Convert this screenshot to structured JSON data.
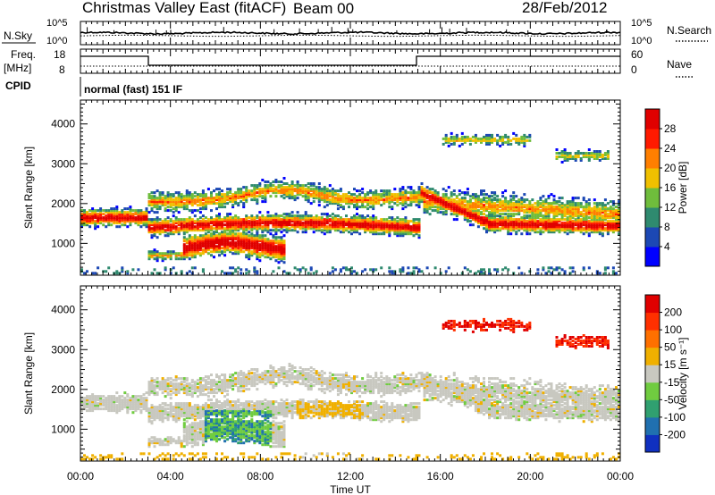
{
  "header": {
    "title": "Christmas Valley East (fitACF)",
    "beam": "Beam 00",
    "date": "28/Feb/2012"
  },
  "strips": {
    "nsky_label": "N.Sky",
    "nsky_ticks": [
      "10^5",
      "10^0"
    ],
    "nsearch_label": "N.Search",
    "nsearch_ticks": [
      "10^5",
      "10^0"
    ],
    "freq_label": "Freq.",
    "freq_unit": "[MHz]",
    "freq_ticks": [
      "18",
      "8"
    ],
    "nave_label": "Nave",
    "nave_ticks": [
      "60",
      "0"
    ],
    "cpid_label": "CPID",
    "cpid_text": "normal (fast) 151 IF"
  },
  "chart_data": [
    {
      "type": "heatmap",
      "name": "power",
      "ylabel": "Slant Range [km]",
      "ytick_labels": [
        "1000",
        "2000",
        "3000",
        "4000"
      ],
      "ylim": [
        200,
        4600
      ],
      "xlim": [
        0,
        24
      ],
      "colorbar": {
        "label": "Power [dB]",
        "ticks": [
          "4",
          "8",
          "12",
          "16",
          "20",
          "24",
          "28"
        ],
        "colors": [
          "#0000ff",
          "#1c48b4",
          "#2f8a6f",
          "#6fbd3c",
          "#f0c000",
          "#ff7f00",
          "#ff1a00",
          "#e00000"
        ]
      }
    },
    {
      "type": "heatmap",
      "name": "velocity",
      "ylabel": "Slant Range [km]",
      "ytick_labels": [
        "1000",
        "2000",
        "3000",
        "4000"
      ],
      "ylim": [
        200,
        4600
      ],
      "xlim": [
        0,
        24
      ],
      "xlabel": "Time UT",
      "xtick_labels": [
        "00:00",
        "04:00",
        "08:00",
        "12:00",
        "16:00",
        "20:00",
        "00:00"
      ],
      "colorbar": {
        "label": "Velocity [m s⁻¹]",
        "ticks": [
          "200",
          "100",
          "50",
          "15",
          "-15",
          "-50",
          "-100",
          "-200"
        ],
        "colors": [
          "#1030c0",
          "#2070b0",
          "#30a070",
          "#70cc40",
          "#c8c8c0",
          "#f0b000",
          "#ff7000",
          "#ff3000",
          "#e00000"
        ]
      }
    }
  ]
}
